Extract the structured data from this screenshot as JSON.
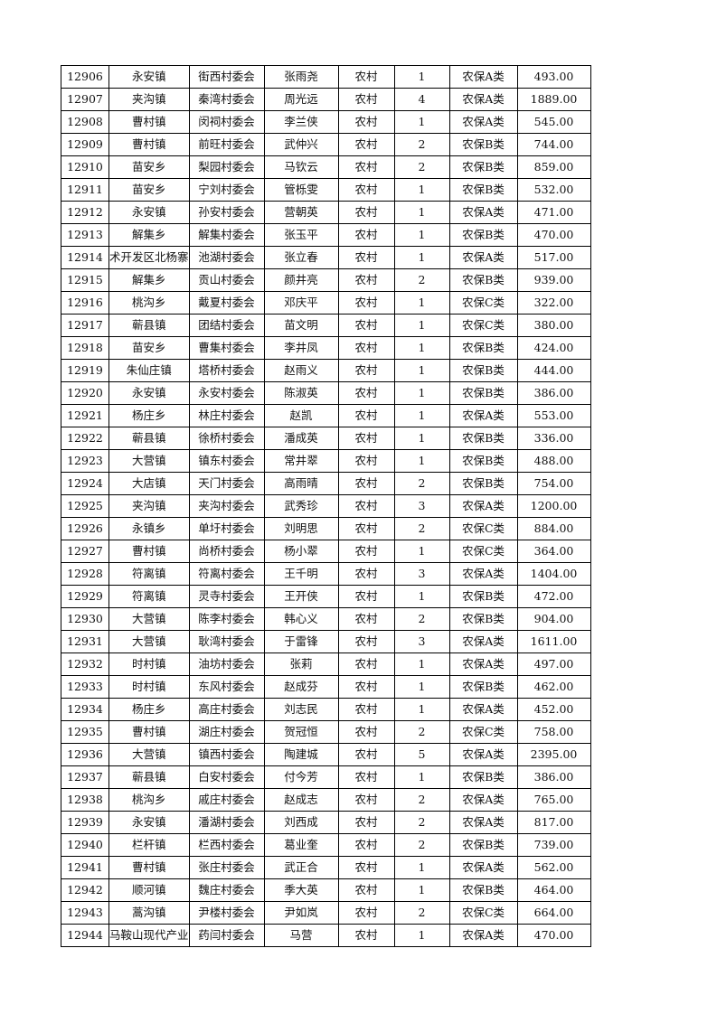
{
  "rows": [
    [
      "12906",
      "永安镇",
      "街西村委会",
      "张雨尧",
      "农村",
      "1",
      "农保A类",
      "493.00"
    ],
    [
      "12907",
      "夹沟镇",
      "秦湾村委会",
      "周光远",
      "农村",
      "4",
      "农保A类",
      "1889.00"
    ],
    [
      "12908",
      "曹村镇",
      "闵祠村委会",
      "李兰侠",
      "农村",
      "1",
      "农保A类",
      "545.00"
    ],
    [
      "12909",
      "曹村镇",
      "前旺村委会",
      "武仲兴",
      "农村",
      "2",
      "农保B类",
      "744.00"
    ],
    [
      "12910",
      "苗安乡",
      "梨园村委会",
      "马钦云",
      "农村",
      "2",
      "农保B类",
      "859.00"
    ],
    [
      "12911",
      "苗安乡",
      "宁刘村委会",
      "管栎雯",
      "农村",
      "1",
      "农保B类",
      "532.00"
    ],
    [
      "12912",
      "永安镇",
      "孙安村委会",
      "营朝英",
      "农村",
      "1",
      "农保A类",
      "471.00"
    ],
    [
      "12913",
      "解集乡",
      "解集村委会",
      "张玉平",
      "农村",
      "1",
      "农保B类",
      "470.00"
    ],
    [
      "12914",
      "术开发区北杨寨",
      "池湖村委会",
      "张立春",
      "农村",
      "1",
      "农保A类",
      "517.00"
    ],
    [
      "12915",
      "解集乡",
      "贡山村委会",
      "颜井亮",
      "农村",
      "2",
      "农保B类",
      "939.00"
    ],
    [
      "12916",
      "桃沟乡",
      "戴夏村委会",
      "邓庆平",
      "农村",
      "1",
      "农保C类",
      "322.00"
    ],
    [
      "12917",
      "蕲县镇",
      "团结村委会",
      "苗文明",
      "农村",
      "1",
      "农保C类",
      "380.00"
    ],
    [
      "12918",
      "苗安乡",
      "曹集村委会",
      "李井凤",
      "农村",
      "1",
      "农保B类",
      "424.00"
    ],
    [
      "12919",
      "朱仙庄镇",
      "塔桥村委会",
      "赵雨义",
      "农村",
      "1",
      "农保B类",
      "444.00"
    ],
    [
      "12920",
      "永安镇",
      "永安村委会",
      "陈淑英",
      "农村",
      "1",
      "农保B类",
      "386.00"
    ],
    [
      "12921",
      "杨庄乡",
      "林庄村委会",
      "赵凯",
      "农村",
      "1",
      "农保A类",
      "553.00"
    ],
    [
      "12922",
      "蕲县镇",
      "徐桥村委会",
      "潘成英",
      "农村",
      "1",
      "农保B类",
      "336.00"
    ],
    [
      "12923",
      "大营镇",
      "镇东村委会",
      "常井翠",
      "农村",
      "1",
      "农保B类",
      "488.00"
    ],
    [
      "12924",
      "大店镇",
      "天门村委会",
      "高雨晴",
      "农村",
      "2",
      "农保B类",
      "754.00"
    ],
    [
      "12925",
      "夹沟镇",
      "夹沟村委会",
      "武秀珍",
      "农村",
      "3",
      "农保A类",
      "1200.00"
    ],
    [
      "12926",
      "永镇乡",
      "单圩村委会",
      "刘明思",
      "农村",
      "2",
      "农保C类",
      "884.00"
    ],
    [
      "12927",
      "曹村镇",
      "尚桥村委会",
      "杨小翠",
      "农村",
      "1",
      "农保C类",
      "364.00"
    ],
    [
      "12928",
      "符离镇",
      "符离村委会",
      "王千明",
      "农村",
      "3",
      "农保A类",
      "1404.00"
    ],
    [
      "12929",
      "符离镇",
      "灵寺村委会",
      "王开侠",
      "农村",
      "1",
      "农保B类",
      "472.00"
    ],
    [
      "12930",
      "大营镇",
      "陈李村委会",
      "韩心义",
      "农村",
      "2",
      "农保B类",
      "904.00"
    ],
    [
      "12931",
      "大营镇",
      "耿湾村委会",
      "于雷锋",
      "农村",
      "3",
      "农保A类",
      "1611.00"
    ],
    [
      "12932",
      "时村镇",
      "油坊村委会",
      "张莉",
      "农村",
      "1",
      "农保A类",
      "497.00"
    ],
    [
      "12933",
      "时村镇",
      "东风村委会",
      "赵成芬",
      "农村",
      "1",
      "农保B类",
      "462.00"
    ],
    [
      "12934",
      "杨庄乡",
      "高庄村委会",
      "刘志民",
      "农村",
      "1",
      "农保A类",
      "452.00"
    ],
    [
      "12935",
      "曹村镇",
      "湖庄村委会",
      "贺冠恒",
      "农村",
      "2",
      "农保C类",
      "758.00"
    ],
    [
      "12936",
      "大营镇",
      "镇西村委会",
      "陶建城",
      "农村",
      "5",
      "农保A类",
      "2395.00"
    ],
    [
      "12937",
      "蕲县镇",
      "白安村委会",
      "付今芳",
      "农村",
      "1",
      "农保B类",
      "386.00"
    ],
    [
      "12938",
      "桃沟乡",
      "戚庄村委会",
      "赵成志",
      "农村",
      "2",
      "农保A类",
      "765.00"
    ],
    [
      "12939",
      "永安镇",
      "潘湖村委会",
      "刘西成",
      "农村",
      "2",
      "农保A类",
      "817.00"
    ],
    [
      "12940",
      "栏杆镇",
      "栏西村委会",
      "葛业奎",
      "农村",
      "2",
      "农保B类",
      "739.00"
    ],
    [
      "12941",
      "曹村镇",
      "张庄村委会",
      "武正合",
      "农村",
      "1",
      "农保A类",
      "562.00"
    ],
    [
      "12942",
      "顺河镇",
      "魏庄村委会",
      "季大英",
      "农村",
      "1",
      "农保B类",
      "464.00"
    ],
    [
      "12943",
      "蒿沟镇",
      "尹楼村委会",
      "尹如岚",
      "农村",
      "2",
      "农保C类",
      "664.00"
    ],
    [
      "12944",
      "马鞍山现代产业",
      "药闫村委会",
      "马营",
      "农村",
      "1",
      "农保A类",
      "470.00"
    ]
  ]
}
